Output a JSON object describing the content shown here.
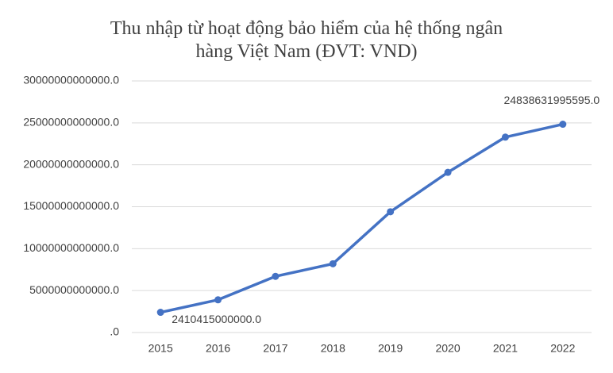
{
  "chart_data": {
    "type": "line",
    "title": "Thu nhập từ hoạt động bảo hiểm của hệ thống ngân hàng Việt Nam (ĐVT: VND)",
    "categories": [
      "2015",
      "2016",
      "2017",
      "2018",
      "2019",
      "2020",
      "2021",
      "2022"
    ],
    "values": [
      2410415000000,
      3900000000000,
      6700000000000,
      8200000000000,
      14400000000000,
      19100000000000,
      23300000000000,
      24838631995595
    ],
    "value_labels": [
      "2410415000000.0",
      null,
      null,
      null,
      null,
      null,
      null,
      "24838631995595.0"
    ],
    "color": "#4472c4",
    "ylim": [
      0,
      30000000000000
    ],
    "yticks": [
      {
        "value": 0,
        "label": ".0"
      },
      {
        "value": 5000000000000,
        "label": "5000000000000.0"
      },
      {
        "value": 10000000000000,
        "label": "10000000000000.0"
      },
      {
        "value": 15000000000000,
        "label": "15000000000000.0"
      },
      {
        "value": 20000000000000,
        "label": "20000000000000.0"
      },
      {
        "value": 25000000000000,
        "label": "25000000000000.0"
      },
      {
        "value": 30000000000000,
        "label": "30000000000000.0"
      }
    ],
    "grid": true
  }
}
